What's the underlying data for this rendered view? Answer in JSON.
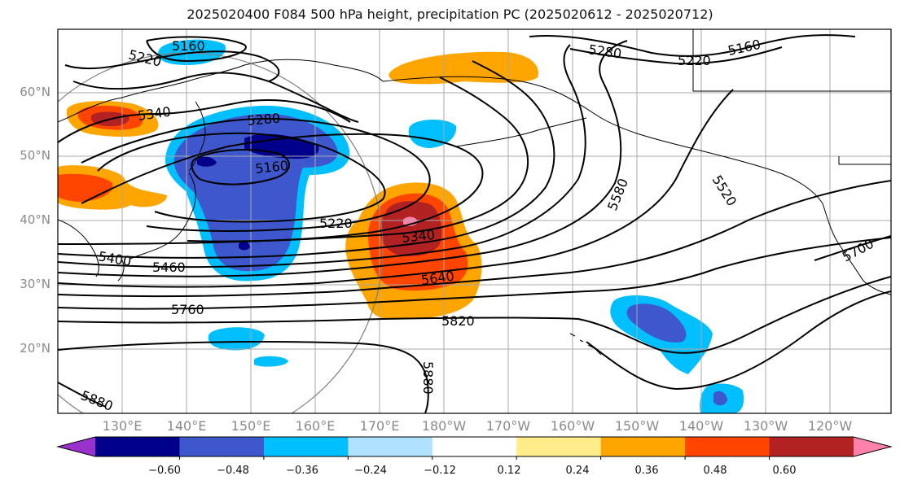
{
  "title": "2025020400 F084 500 hPa height, precipitation PC (2025020612 - 2025020712)",
  "lat_labels": [
    "60°N",
    "50°N",
    "40°N",
    "30°N",
    "20°N"
  ],
  "lon_labels": [
    "130°E",
    "140°E",
    "150°E",
    "160°E",
    "170°E",
    "180°W",
    "170°W",
    "160°W",
    "150°W",
    "140°W",
    "130°W",
    "120°W"
  ],
  "colorbar": {
    "colors": [
      "#9932cc",
      "#00008b",
      "#3f57cc",
      "#00bfff",
      "#b0e2ff",
      "#ffffff",
      "#ffec8b",
      "#ffa500",
      "#ff4500",
      "#b22222",
      "#ff82ab"
    ],
    "tick_labels": [
      "−0.60",
      "−0.48",
      "−0.36",
      "−0.24",
      "−0.12",
      "0.12",
      "0.24",
      "0.36",
      "0.48",
      "0.60"
    ]
  },
  "contour_labels": [
    "5160",
    "5220",
    "5280",
    "5160",
    "5220",
    "5340",
    "5280",
    "5160",
    "5580",
    "5520",
    "5220",
    "5340",
    "5640",
    "5700",
    "5460",
    "5400",
    "5760",
    "5820",
    "5880",
    "5880"
  ],
  "colors": {
    "contour": "#000000",
    "grid": "#a8a8a8",
    "axis_label": "#8a8a8a"
  }
}
